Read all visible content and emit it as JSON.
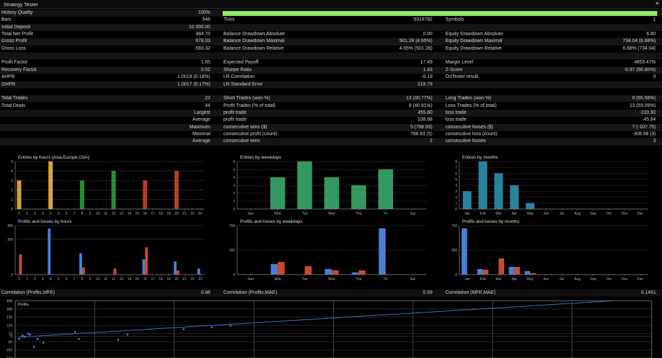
{
  "window": {
    "title": "Strategy Tester",
    "close_icon": "×"
  },
  "quality": {
    "fraction": 1.0
  },
  "stats_rows": [
    {
      "l1": "History Quality",
      "v1": "100%",
      "l2": "",
      "v2": "",
      "l3": "",
      "v3": ""
    },
    {
      "l1": "Bars",
      "v1": "546",
      "l2": "Ticks",
      "v2": "9316782",
      "l3": "Symbols",
      "v3": "1"
    },
    {
      "l1": "Initial Deposit",
      "v1": "10 000.00",
      "l2": "",
      "v2": "",
      "l3": "",
      "v3": ""
    },
    {
      "l1": "Total Net Profit",
      "v1": "384.70",
      "l2": "Balance Drawdown Absolute",
      "v2": "0.00",
      "l3": "Equity Drawdown Absolute",
      "v3": "6.80"
    },
    {
      "l1": "Gross Profit",
      "v1": "978.03",
      "l2": "Balance Drawdown Maximal",
      "v2": "501.28 (4.65%)",
      "l3": "Equity Drawdown Maximal",
      "v3": "734.04 (6.68%)"
    },
    {
      "l1": "Gross Loss",
      "v1": "-593.32",
      "l2": "Balance Drawdown Relative",
      "v2": "4.65% (501.28)",
      "l3": "Equity Drawdown Relative",
      "v3": "6.68% (734.04)"
    },
    {
      "l1": "",
      "v1": "",
      "l2": "",
      "v2": "",
      "l3": "",
      "v3": ""
    },
    {
      "l1": "Profit Factor",
      "v1": "1.65",
      "l2": "Expected Payoff",
      "v2": "17.49",
      "l3": "Margin Level",
      "v3": "4853.47%"
    },
    {
      "l1": "Recovery Factor",
      "v1": "0.52",
      "l2": "Sharpe Ratio",
      "v2": "1.43",
      "l3": "Z-Score",
      "v3": "-0.97 (66.80%)"
    },
    {
      "l1": "AHPR",
      "v1": "1.0018 (0.18%)",
      "l2": "LR Correlation",
      "v2": "-0.13",
      "l3": "OnTester result",
      "v3": "0"
    },
    {
      "l1": "GHPR",
      "v1": "1.0017 (0.17%)",
      "l2": "LR Standard Error",
      "v2": "219.79",
      "l3": "",
      "v3": ""
    },
    {
      "l1": "",
      "v1": "",
      "l2": "",
      "v2": "",
      "l3": "",
      "v3": ""
    },
    {
      "l1": "Total Trades",
      "v1": "22",
      "l2": "Short Trades (won %)",
      "v2": "13 (30.77%)",
      "l3": "Long Trades (won %)",
      "v3": "9 (55.56%)"
    },
    {
      "l1": "Total Deals",
      "v1": "44",
      "l2": "Profit Trades (% of total)",
      "v2": "9 (40.91%)",
      "l3": "Loss Trades (% of total)",
      "v3": "13 (59.09%)"
    },
    {
      "l1": "",
      "r1": "Largest",
      "v1": "",
      "l2": "profit trade",
      "v2": "455.80",
      "l3": "loss trade",
      "v3": "-220.92"
    },
    {
      "l1": "",
      "r1": "Average",
      "v1": "",
      "l2": "profit trade",
      "v2": "108.68",
      "l3": "loss trade",
      "v3": "-45.64"
    },
    {
      "l1": "",
      "r1": "Maximum",
      "v1": "",
      "l2": "consecutive wins ($)",
      "v2": "5 (768.93)",
      "l3": "consecutive losses ($)",
      "v3": "7 (-107.75)"
    },
    {
      "l1": "",
      "r1": "Maximal",
      "v1": "",
      "l2": "consecutive profit (count)",
      "v2": "768.93 (5)",
      "l3": "consecutive loss (count)",
      "v3": "-308.98 (3)"
    },
    {
      "l1": "",
      "r1": "Average",
      "v1": "",
      "l2": "consecutive wins",
      "v2": "2",
      "l3": "consecutive losses",
      "v3": "3"
    }
  ],
  "correlation": {
    "l1": "Correlation (Profits,MFE)",
    "v1": "0.88",
    "l2": "Correlation (Profits,MAE)",
    "v2": "0.59",
    "l3": "Correlation (MFE,MAE)",
    "v3": "0.1451"
  },
  "chart_data": [
    {
      "type": "bar",
      "title": "Entries by hours (Asia,Europe,USA)",
      "categories": [
        "0",
        "1",
        "2",
        "3",
        "4",
        "5",
        "6",
        "7",
        "8",
        "9",
        "10",
        "11",
        "12",
        "13",
        "14",
        "15",
        "16",
        "17",
        "18",
        "19",
        "20",
        "21",
        "22",
        "23"
      ],
      "values": [
        3,
        0,
        0,
        0,
        5,
        0,
        0,
        0,
        3,
        0,
        0,
        0,
        4,
        0,
        0,
        0,
        3,
        0,
        0,
        0,
        4,
        0,
        0,
        0
      ],
      "colors": [
        "#e8b23e",
        "",
        "",
        "",
        "#f0b850",
        "",
        "",
        "",
        "#2e9a3c",
        "",
        "",
        "",
        "#2e9a3c",
        "",
        "",
        "",
        "#c7462e",
        "",
        "",
        "",
        "#c7462e",
        "",
        "",
        ""
      ],
      "yticks": [
        "0",
        "1",
        "2",
        "3",
        "4",
        "5"
      ],
      "ylim": [
        0,
        5
      ]
    },
    {
      "type": "bar",
      "title": "Entries by weekdays",
      "categories": [
        "Sun",
        "Mon",
        "Tue",
        "Wed",
        "Thu",
        "Fri",
        "Sat"
      ],
      "values": [
        0,
        4,
        6,
        4,
        3,
        5,
        0
      ],
      "color": "#3aa86e",
      "yticks": [
        "0",
        "1",
        "2",
        "3",
        "4",
        "5",
        "6"
      ],
      "ylim": [
        0,
        6
      ]
    },
    {
      "type": "bar",
      "title": "Entries by months",
      "categories": [
        "Jan",
        "Feb",
        "Mar",
        "Apr",
        "May",
        "Jun",
        "Jul",
        "Aug",
        "Sep",
        "Oct",
        "Nov",
        "Dec"
      ],
      "values": [
        3,
        8,
        6,
        4,
        1,
        0,
        0,
        0,
        0,
        0,
        0,
        0
      ],
      "color": "#2f8fb0",
      "yticks": [
        "0",
        "1",
        "2",
        "3",
        "4",
        "5",
        "6",
        "7",
        "8"
      ],
      "ylim": [
        0,
        8
      ]
    },
    {
      "type": "bar",
      "title": "Profits and losses by hours",
      "categories": [
        "0",
        "1",
        "2",
        "3",
        "4",
        "5",
        "6",
        "7",
        "8",
        "9",
        "10",
        "11",
        "12",
        "13",
        "14",
        "15",
        "16",
        "17",
        "18",
        "19",
        "20",
        "21",
        "22",
        "23"
      ],
      "series": [
        {
          "name": "profits",
          "color": "#4a7fd8",
          "values": [
            0,
            0,
            0,
            0,
            455,
            0,
            0,
            0,
            210,
            0,
            0,
            0,
            0,
            0,
            0,
            0,
            150,
            0,
            0,
            0,
            130,
            0,
            0,
            60
          ]
        },
        {
          "name": "losses",
          "color": "#c94a34",
          "values": [
            200,
            0,
            0,
            0,
            0,
            0,
            0,
            0,
            70,
            0,
            0,
            0,
            60,
            0,
            0,
            0,
            270,
            0,
            0,
            0,
            40,
            0,
            0,
            0
          ]
        }
      ],
      "yticks": [
        "0",
        "350",
        "485"
      ],
      "ylim": [
        0,
        485
      ]
    },
    {
      "type": "bar",
      "title": "Profits and losses by weekdays",
      "categories": [
        "Sun",
        "Mon",
        "Tue",
        "Wed",
        "Thu",
        "Fri",
        "Sat"
      ],
      "series": [
        {
          "name": "profits",
          "color": "#4a7fd8",
          "values": [
            0,
            150,
            0,
            80,
            30,
            660,
            0
          ]
        },
        {
          "name": "losses",
          "color": "#c94a34",
          "values": [
            0,
            180,
            120,
            60,
            60,
            0,
            0
          ]
        }
      ],
      "yticks": [
        "0",
        "350",
        "700"
      ],
      "ylim": [
        0,
        700
      ]
    },
    {
      "type": "bar",
      "title": "Profits and losses by months",
      "categories": [
        "Jan",
        "Feb",
        "Mar",
        "Apr",
        "May",
        "Jun",
        "Jul",
        "Aug",
        "Sep",
        "Oct",
        "Nov",
        "Dec"
      ],
      "series": [
        {
          "name": "profits",
          "color": "#4a7fd8",
          "values": [
            660,
            80,
            0,
            110,
            50,
            0,
            0,
            0,
            0,
            0,
            0,
            0
          ]
        },
        {
          "name": "losses",
          "color": "#c94a34",
          "values": [
            0,
            70,
            230,
            110,
            20,
            0,
            0,
            0,
            0,
            0,
            0,
            0
          ]
        }
      ],
      "yticks": [
        "0",
        "350",
        "700"
      ],
      "ylim": [
        0,
        700
      ]
    },
    {
      "type": "scatter",
      "title": "Profits",
      "yticks": [
        "400",
        "308",
        "216",
        "124",
        "32",
        "0",
        "-60",
        "-152",
        "-244"
      ],
      "ylim": [
        -244,
        400
      ],
      "points": [
        [
          0.2,
          -30
        ],
        [
          0.4,
          10
        ],
        [
          0.5,
          -5
        ],
        [
          0.7,
          30
        ],
        [
          1.2,
          -30
        ],
        [
          1.5,
          -70
        ],
        [
          1.0,
          -120
        ],
        [
          0.8,
          20
        ],
        [
          3.2,
          50
        ],
        [
          3.4,
          -30
        ],
        [
          5.5,
          -40
        ],
        [
          6.0,
          20
        ],
        [
          9.0,
          80
        ],
        [
          10.5,
          100
        ],
        [
          11.5,
          120
        ]
      ],
      "trend": [
        [
          0.2,
          -10
        ],
        [
          32,
          400
        ]
      ],
      "xmax": 34
    }
  ]
}
